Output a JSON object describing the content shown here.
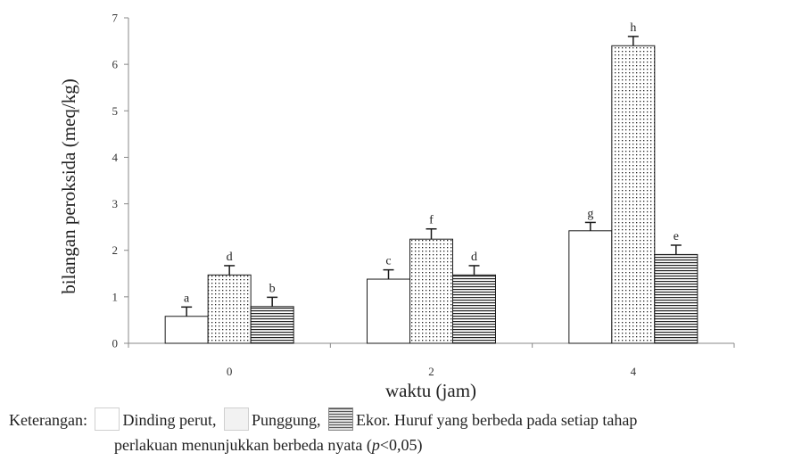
{
  "chart_data": {
    "type": "bar",
    "title": "",
    "xlabel": "waktu (jam)",
    "ylabel": "bilangan peroksida (meq/kg)",
    "ylim": [
      0,
      7
    ],
    "yticks": [
      "0",
      "1",
      "2",
      "3",
      "4",
      "5",
      "6",
      "7"
    ],
    "categories": [
      "0",
      "2",
      "4"
    ],
    "grid": false,
    "series": [
      {
        "name": "Dinding perut",
        "fill": "plain white",
        "values": [
          0.58,
          1.38,
          2.42
        ],
        "errors": [
          0.2,
          0.2,
          0.18
        ],
        "letters": [
          "a",
          "c",
          "g"
        ]
      },
      {
        "name": "Punggung",
        "fill": "dotted",
        "values": [
          1.47,
          2.24,
          6.4
        ],
        "errors": [
          0.2,
          0.22,
          0.2
        ],
        "letters": [
          "d",
          "f",
          "h"
        ]
      },
      {
        "name": "Ekor",
        "fill": "horizontal lines",
        "values": [
          0.79,
          1.47,
          1.91
        ],
        "errors": [
          0.2,
          0.2,
          0.2
        ],
        "letters": [
          "b",
          "d",
          "e"
        ]
      }
    ]
  },
  "caption": {
    "label": "Keterangan:",
    "items": [
      "Dinding perut,",
      "Punggung,",
      "Ekor."
    ],
    "note_part1": "Huruf yang berbeda pada setiap tahap",
    "note_part2_a": "perlakuan  menunjukkan berbeda  nyata (",
    "note_part2_p": "p",
    "note_part2_b": "<0,05)"
  },
  "colors": {
    "bar_stroke": "#1a1a1a",
    "axis": "#888888",
    "text": "#222222"
  }
}
